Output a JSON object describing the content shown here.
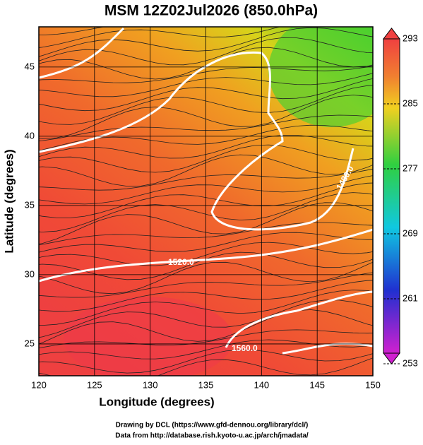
{
  "map": {
    "title": "MSM 12Z02Jul2026 (850.0hPa)",
    "x_axis": {
      "label": "Longitude (degrees)",
      "ticks": [
        120,
        125,
        130,
        135,
        140,
        145,
        150
      ],
      "lim": [
        120,
        150
      ]
    },
    "y_axis": {
      "label": "Latitude  (degrees)",
      "ticks": [
        25,
        30,
        35,
        40,
        45
      ],
      "lim": [
        22.7,
        47.9
      ]
    },
    "colorbar": {
      "ticks": [
        253,
        261,
        269,
        277,
        285,
        293
      ],
      "lim": [
        253,
        293
      ]
    },
    "contour_labels": [
      "1520.0",
      "1560.0",
      "1480.0"
    ],
    "footer": [
      "Drawing by DCL (https://www.gfd-dennou.org/library/dcl/)",
      "Data from http://database.rish.kyoto-u.ac.jp/arch/jmadata/"
    ]
  }
}
